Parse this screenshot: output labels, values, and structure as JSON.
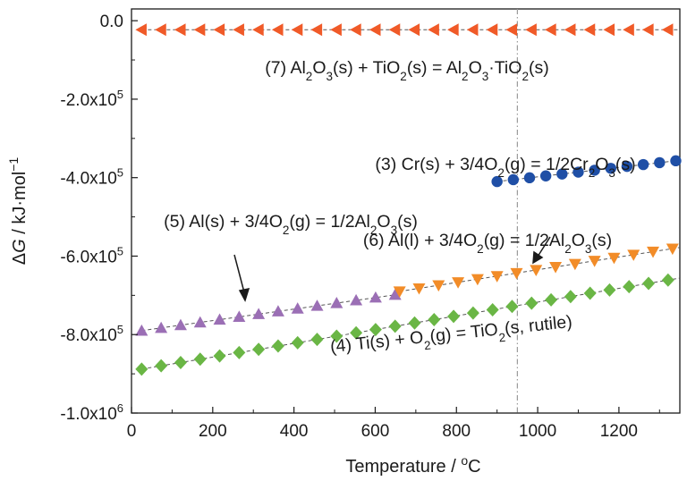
{
  "chart_data": {
    "type": "scatter",
    "xlabel": "Temperature / °C",
    "ylabel": "ΔG / kJ·mol⁻¹",
    "xlim": [
      0,
      1350
    ],
    "ylim": [
      -1000000,
      30000
    ],
    "grid": false,
    "legend": "none",
    "x_ticks": [
      "0",
      "200",
      "400",
      "600",
      "800",
      "1000",
      "1200"
    ],
    "x_tick_values": [
      0,
      200,
      400,
      600,
      800,
      1000,
      1200
    ],
    "y_ticks": [
      "0.0",
      "-2.0x10^5",
      "-4.0x10^5",
      "-6.0x10^5",
      "-8.0x10^5",
      "-1.0x10^6"
    ],
    "y_tick_values": [
      0,
      -200000,
      -400000,
      -600000,
      -800000,
      -1000000
    ],
    "reference_line": {
      "x": 950,
      "style": "dash-dot",
      "color": "#999999"
    },
    "series": [
      {
        "label": "(7) Al2O3(s) + TiO2(s) = Al2O3·TiO2(s)",
        "marker": "triangle-left",
        "color": "#f05a28",
        "x_start": 25,
        "x_end": 1350,
        "x_step": 48,
        "y_start": -23000,
        "y_end": -23000
      },
      {
        "label": "(3) Cr(s) + 3/4O2(g) = 1/2Cr2O3(s)",
        "marker": "circle",
        "color": "#1f4fa6",
        "x_start": 900,
        "x_end": 1340,
        "x_step": 40,
        "y_start": -410000,
        "y_end": -357000
      },
      {
        "label": "(5) Al(s) + 3/4O2(g) = 1/2Al2O3(s)",
        "marker": "triangle-up",
        "color": "#9b6fb5",
        "x_start": 25,
        "x_end": 660,
        "x_step": 48,
        "y_start": -790000,
        "y_end": -697000
      },
      {
        "label": "(6) Al(l) + 3/4O2(g) = 1/2Al2O3(s)",
        "marker": "triangle-down",
        "color": "#f28c28",
        "x_start": 660,
        "x_end": 1350,
        "x_step": 48,
        "y_start": -690000,
        "y_end": -578000
      },
      {
        "label": "(4) Ti(s) + O2(g) = TiO2(s, rutile)",
        "marker": "diamond",
        "color": "#6ab645",
        "x_start": 25,
        "x_end": 1350,
        "x_step": 48,
        "y_start": -888000,
        "y_end": -656000
      }
    ],
    "annotations": [
      {
        "parts": [
          [
            "(7) Al",
            "n"
          ],
          [
            "2",
            "s"
          ],
          [
            "O",
            "n"
          ],
          [
            "3",
            "s"
          ],
          [
            "(s) + TiO",
            "n"
          ],
          [
            "2",
            "s"
          ],
          [
            "(s) = Al",
            "n"
          ],
          [
            "2",
            "s"
          ],
          [
            "O",
            "n"
          ],
          [
            "3",
            "s"
          ],
          [
            "·TiO",
            "n"
          ],
          [
            "2",
            "s"
          ],
          [
            "(s)",
            "n"
          ]
        ]
      },
      {
        "parts": [
          [
            "(3) Cr(s) + 3/4O",
            "n"
          ],
          [
            "2",
            "s"
          ],
          [
            "(g) = 1/2Cr",
            "n"
          ],
          [
            "2",
            "s"
          ],
          [
            "O",
            "n"
          ],
          [
            "3",
            "s"
          ],
          [
            "(s)",
            "n"
          ]
        ]
      },
      {
        "parts": [
          [
            "(5) Al(s) + 3/4O",
            "n"
          ],
          [
            "2",
            "s"
          ],
          [
            "(g) = 1/2Al",
            "n"
          ],
          [
            "2",
            "s"
          ],
          [
            "O",
            "n"
          ],
          [
            "3",
            "s"
          ],
          [
            "(s)",
            "n"
          ]
        ]
      },
      {
        "parts": [
          [
            "(6) Al(l) + 3/4O",
            "n"
          ],
          [
            "2",
            "s"
          ],
          [
            "(g) = 1/2Al",
            "n"
          ],
          [
            "2",
            "s"
          ],
          [
            "O",
            "n"
          ],
          [
            "3",
            "s"
          ],
          [
            "(s)",
            "n"
          ]
        ]
      },
      {
        "parts": [
          [
            "(4) Ti(s) + O",
            "n"
          ],
          [
            "2",
            "s"
          ],
          [
            "(g) = TiO",
            "n"
          ],
          [
            "2",
            "s"
          ],
          [
            "(s, rutile)",
            "n"
          ]
        ]
      }
    ]
  }
}
